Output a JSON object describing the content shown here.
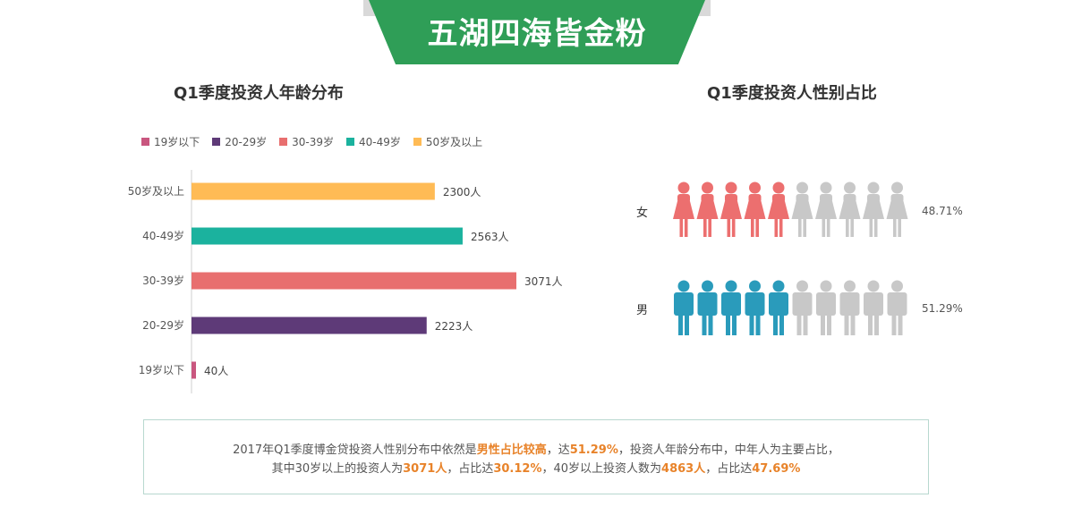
{
  "banner": {
    "title": "五湖四海皆金粉"
  },
  "colors": {
    "banner": "#2f9e57",
    "female": "#ec6f6f",
    "male": "#2a9bbb",
    "inactive": "#c8c8c8",
    "highlight": "#e8832a"
  },
  "age_section": {
    "title": "Q1季度投资人年龄分布"
  },
  "gender_section": {
    "title": "Q1季度投资人性别占比",
    "rows": [
      {
        "label": "女",
        "pct_text": "48.71%",
        "pct": 48.71,
        "icons_filled": 5,
        "icons_total": 10,
        "icon": "female-person-icon"
      },
      {
        "label": "男",
        "pct_text": "51.29%",
        "pct": 51.29,
        "icons_filled": 5,
        "icons_total": 10,
        "icon": "male-person-icon"
      }
    ]
  },
  "chart_data": {
    "type": "bar",
    "orientation": "horizontal",
    "title": "Q1季度投资人年龄分布",
    "legend": {
      "position": "top-left",
      "entries": [
        {
          "label": "19岁以下",
          "color": "#c9567f"
        },
        {
          "label": "20-29岁",
          "color": "#5e3a78"
        },
        {
          "label": "30-39岁",
          "color": "#e86f6f"
        },
        {
          "label": "40-49岁",
          "color": "#1bb29e"
        },
        {
          "label": "50岁及以上",
          "color": "#ffbb55"
        }
      ]
    },
    "categories": [
      "50岁及以上",
      "40-49岁",
      "30-39岁",
      "20-29岁",
      "19岁以下"
    ],
    "values": [
      2300,
      2563,
      3071,
      2223,
      40
    ],
    "value_labels": [
      "2300人",
      "2563人",
      "3071人",
      "2223人",
      "40人"
    ],
    "colors": [
      "#ffbb55",
      "#1bb29e",
      "#e86f6f",
      "#5e3a78",
      "#c9567f"
    ],
    "xlim": [
      0,
      3071
    ],
    "grid": false
  },
  "summary": {
    "line1": {
      "t1": "2017年Q1季度博金贷投资人性别分布中依然是",
      "h1": "男性占比较高",
      "t2": "，达",
      "h2": "51.29%",
      "t3": "，投资人年龄分布中，中年人为主要占比，"
    },
    "line2": {
      "t1": "其中30岁以上的投资人为",
      "h1": "3071人",
      "t2": "，占比达",
      "h2": "30.12%",
      "t3": "，40岁以上投资人数为",
      "h3": "4863人",
      "t4": "，占比达",
      "h4": "47.69%"
    }
  }
}
